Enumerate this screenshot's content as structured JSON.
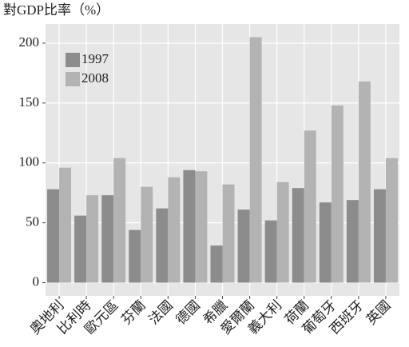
{
  "chart_data": {
    "type": "bar",
    "title": "對GDP比率（%）",
    "categories": [
      "奧地利",
      "比利時",
      "歐元區",
      "芬蘭",
      "法國",
      "德國",
      "希臘",
      "愛爾蘭",
      "義大利",
      "荷蘭",
      "葡萄牙",
      "西班牙",
      "英國"
    ],
    "series": [
      {
        "name": "1997",
        "color": "#8c8c8c",
        "values": [
          78,
          56,
          73,
          44,
          62,
          94,
          31,
          61,
          52,
          79,
          67,
          69,
          78
        ]
      },
      {
        "name": "2008",
        "color": "#b3b3b3",
        "values": [
          96,
          73,
          104,
          80,
          88,
          93,
          82,
          205,
          84,
          127,
          148,
          168,
          104
        ]
      }
    ],
    "ylim": [
      -11,
      216
    ],
    "yticks": [
      0,
      50,
      100,
      150,
      200
    ],
    "grid": true,
    "legend": "upper left"
  }
}
